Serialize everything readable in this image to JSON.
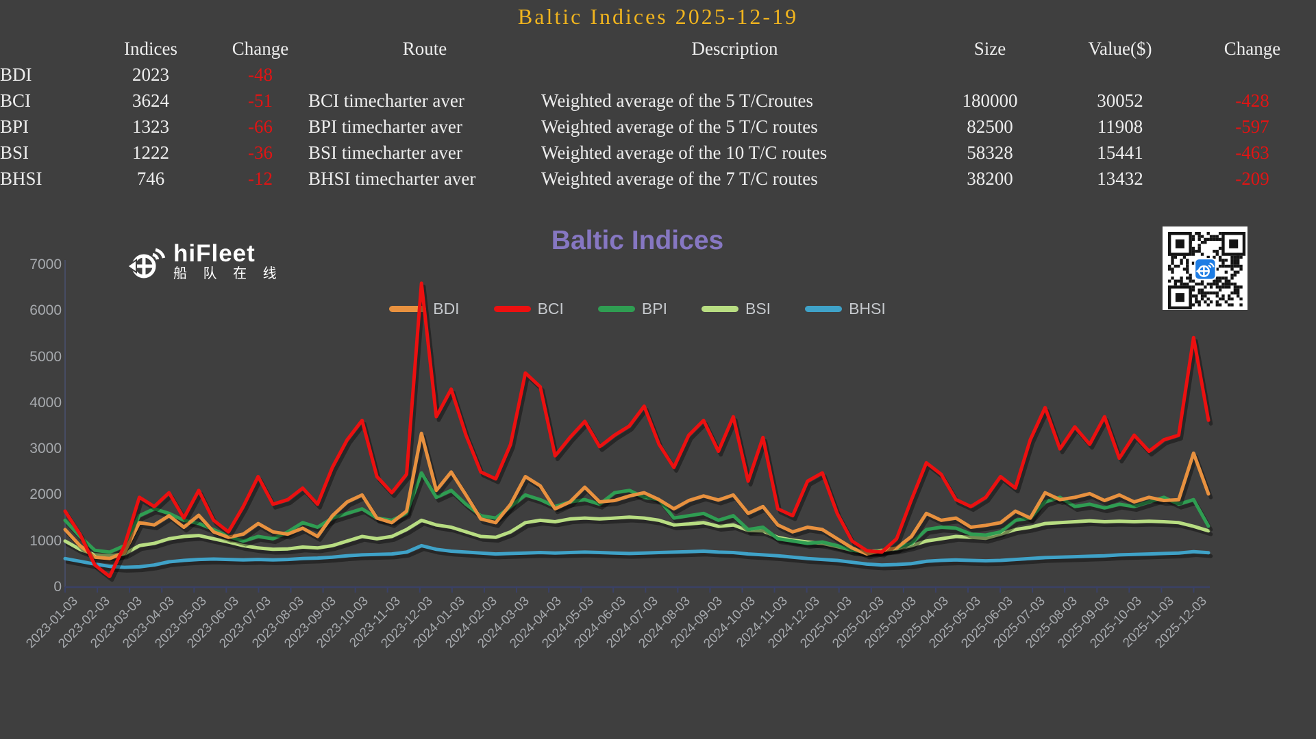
{
  "page": {
    "background": "#3f3f3f"
  },
  "header": {
    "title": "Baltic Indices 2025-12-19",
    "title_color": "#f0b41e",
    "negative_color": "#e01414",
    "columns": [
      "",
      "Indices",
      "Change",
      "Route",
      "Description",
      "Size",
      "Value($)",
      "Change"
    ],
    "rows": [
      {
        "label": "BDI",
        "index": "2023",
        "change": "-48",
        "route": "",
        "description": "",
        "size": "",
        "value": "",
        "value_change": ""
      },
      {
        "label": "BCI",
        "index": "3624",
        "change": "-51",
        "route": "BCI timecharter aver",
        "description": "Weighted average of the 5 T/Croutes",
        "size": "180000",
        "value": "30052",
        "value_change": "-428"
      },
      {
        "label": "BPI",
        "index": "1323",
        "change": "-66",
        "route": "BPI timecharter aver",
        "description": "Weighted average of the 5 T/C routes",
        "size": "82500",
        "value": "11908",
        "value_change": "-597"
      },
      {
        "label": "BSI",
        "index": "1222",
        "change": "-36",
        "route": "BSI timecharter aver",
        "description": "Weighted average of the 10 T/C routes",
        "size": "58328",
        "value": "15441",
        "value_change": "-463"
      },
      {
        "label": "BHSI",
        "index": "746",
        "change": "-12",
        "route": "BHSI timecharter aver",
        "description": "Weighted average of the 7 T/C routes",
        "size": "38200",
        "value": "13432",
        "value_change": "-209"
      }
    ]
  },
  "logo": {
    "name": "hiFleet",
    "subtitle": "船 队 在 线"
  },
  "qr": {
    "background": "#ffffff",
    "module_color": "#141414",
    "badge_color": "#1e7de4"
  },
  "chart_data": {
    "type": "line",
    "title": "Baltic Indices",
    "title_color": "#8677c2",
    "legend_position": "top-center",
    "grid": false,
    "axis_color": "#3a4166",
    "label_color": "#a7aaae",
    "ylim": [
      0,
      7000
    ],
    "y_ticks": [
      0,
      1000,
      2000,
      3000,
      4000,
      5000,
      6000,
      7000
    ],
    "x_start": "2023-01-03",
    "x_end": "2025-12-19",
    "sampling": "biweekly",
    "x_labels": [
      "2023-01-03",
      "2023-02-03",
      "2023-03-03",
      "2023-04-03",
      "2023-05-03",
      "2023-06-03",
      "2023-07-03",
      "2023-08-03",
      "2023-09-03",
      "2023-10-03",
      "2023-11-03",
      "2023-12-03",
      "2024-01-03",
      "2024-02-03",
      "2024-03-03",
      "2024-04-03",
      "2024-05-03",
      "2024-06-03",
      "2024-07-03",
      "2024-08-03",
      "2024-09-03",
      "2024-10-03",
      "2024-11-03",
      "2024-12-03",
      "2025-01-03",
      "2025-02-03",
      "2025-03-03",
      "2025-04-03",
      "2025-05-03",
      "2025-06-03",
      "2025-07-03",
      "2025-08-03",
      "2025-09-03",
      "2025-10-03",
      "2025-11-03",
      "2025-12-03"
    ],
    "series": [
      {
        "name": "BDI",
        "color": "#e8913f",
        "last_value": 2023,
        "values": [
          1250,
          900,
          650,
          620,
          750,
          1400,
          1350,
          1550,
          1300,
          1560,
          1200,
          1080,
          1150,
          1380,
          1200,
          1150,
          1280,
          1100,
          1550,
          1850,
          2000,
          1500,
          1400,
          1650,
          3340,
          2100,
          2500,
          2000,
          1480,
          1400,
          1800,
          2400,
          2200,
          1700,
          1850,
          2170,
          1850,
          1880,
          1980,
          2050,
          1900,
          1700,
          1880,
          1980,
          1890,
          2000,
          1600,
          1750,
          1350,
          1200,
          1300,
          1250,
          1050,
          850,
          720,
          790,
          850,
          1100,
          1600,
          1450,
          1500,
          1300,
          1340,
          1400,
          1650,
          1500,
          2050,
          1900,
          1950,
          2030,
          1880,
          2000,
          1850,
          1950,
          1880,
          1900,
          2910,
          2023
        ]
      },
      {
        "name": "BCI",
        "color": "#ec1010",
        "last_value": 3624,
        "values": [
          1650,
          1150,
          480,
          230,
          900,
          1950,
          1750,
          2050,
          1500,
          2100,
          1450,
          1200,
          1750,
          2400,
          1800,
          1900,
          2150,
          1800,
          2600,
          3200,
          3620,
          2400,
          2050,
          2450,
          6600,
          3700,
          4300,
          3300,
          2500,
          2350,
          3100,
          4650,
          4350,
          2850,
          3250,
          3600,
          3050,
          3300,
          3500,
          3930,
          3100,
          2600,
          3300,
          3620,
          2950,
          3700,
          2300,
          3250,
          1700,
          1550,
          2300,
          2480,
          1600,
          1000,
          790,
          760,
          1050,
          1900,
          2700,
          2450,
          1900,
          1750,
          1950,
          2400,
          2150,
          3200,
          3900,
          3000,
          3480,
          3100,
          3700,
          2800,
          3300,
          2950,
          3200,
          3300,
          5420,
          3624
        ]
      },
      {
        "name": "BPI",
        "color": "#2f9d52",
        "last_value": 1323,
        "values": [
          1450,
          1100,
          800,
          760,
          900,
          1550,
          1700,
          1600,
          1450,
          1380,
          1250,
          1100,
          1000,
          1100,
          1050,
          1200,
          1400,
          1300,
          1500,
          1600,
          1700,
          1500,
          1450,
          1600,
          2480,
          1950,
          2100,
          1800,
          1550,
          1500,
          1750,
          2000,
          1900,
          1750,
          1850,
          1900,
          1800,
          2050,
          2100,
          1950,
          1900,
          1500,
          1550,
          1600,
          1450,
          1550,
          1250,
          1300,
          1050,
          1000,
          950,
          980,
          900,
          800,
          760,
          800,
          850,
          950,
          1250,
          1300,
          1280,
          1150,
          1130,
          1200,
          1450,
          1500,
          1850,
          1950,
          1750,
          1800,
          1720,
          1800,
          1750,
          1850,
          1950,
          1800,
          1900,
          1323
        ]
      },
      {
        "name": "BSI",
        "color": "#b8dd82",
        "last_value": 1222,
        "values": [
          1000,
          820,
          700,
          680,
          720,
          900,
          950,
          1050,
          1100,
          1120,
          1050,
          980,
          900,
          850,
          820,
          830,
          870,
          850,
          900,
          1000,
          1100,
          1050,
          1100,
          1250,
          1450,
          1350,
          1300,
          1200,
          1100,
          1080,
          1200,
          1400,
          1450,
          1420,
          1480,
          1500,
          1480,
          1500,
          1520,
          1500,
          1450,
          1350,
          1370,
          1400,
          1320,
          1350,
          1230,
          1220,
          1080,
          1020,
          980,
          950,
          880,
          800,
          770,
          800,
          830,
          900,
          1000,
          1050,
          1100,
          1080,
          1060,
          1150,
          1250,
          1300,
          1380,
          1400,
          1420,
          1440,
          1420,
          1430,
          1420,
          1430,
          1420,
          1400,
          1320,
          1222
        ]
      },
      {
        "name": "BHSI",
        "color": "#3fa2c8",
        "last_value": 746,
        "values": [
          620,
          560,
          500,
          450,
          430,
          440,
          480,
          550,
          580,
          600,
          610,
          600,
          590,
          600,
          590,
          600,
          620,
          630,
          650,
          680,
          700,
          710,
          720,
          760,
          900,
          820,
          780,
          760,
          740,
          720,
          730,
          740,
          750,
          740,
          750,
          760,
          750,
          740,
          730,
          740,
          750,
          760,
          770,
          780,
          760,
          750,
          720,
          700,
          680,
          650,
          620,
          600,
          580,
          540,
          500,
          480,
          490,
          510,
          560,
          580,
          590,
          580,
          570,
          580,
          600,
          620,
          640,
          650,
          660,
          670,
          680,
          700,
          710,
          720,
          730,
          740,
          770,
          746
        ]
      }
    ]
  }
}
